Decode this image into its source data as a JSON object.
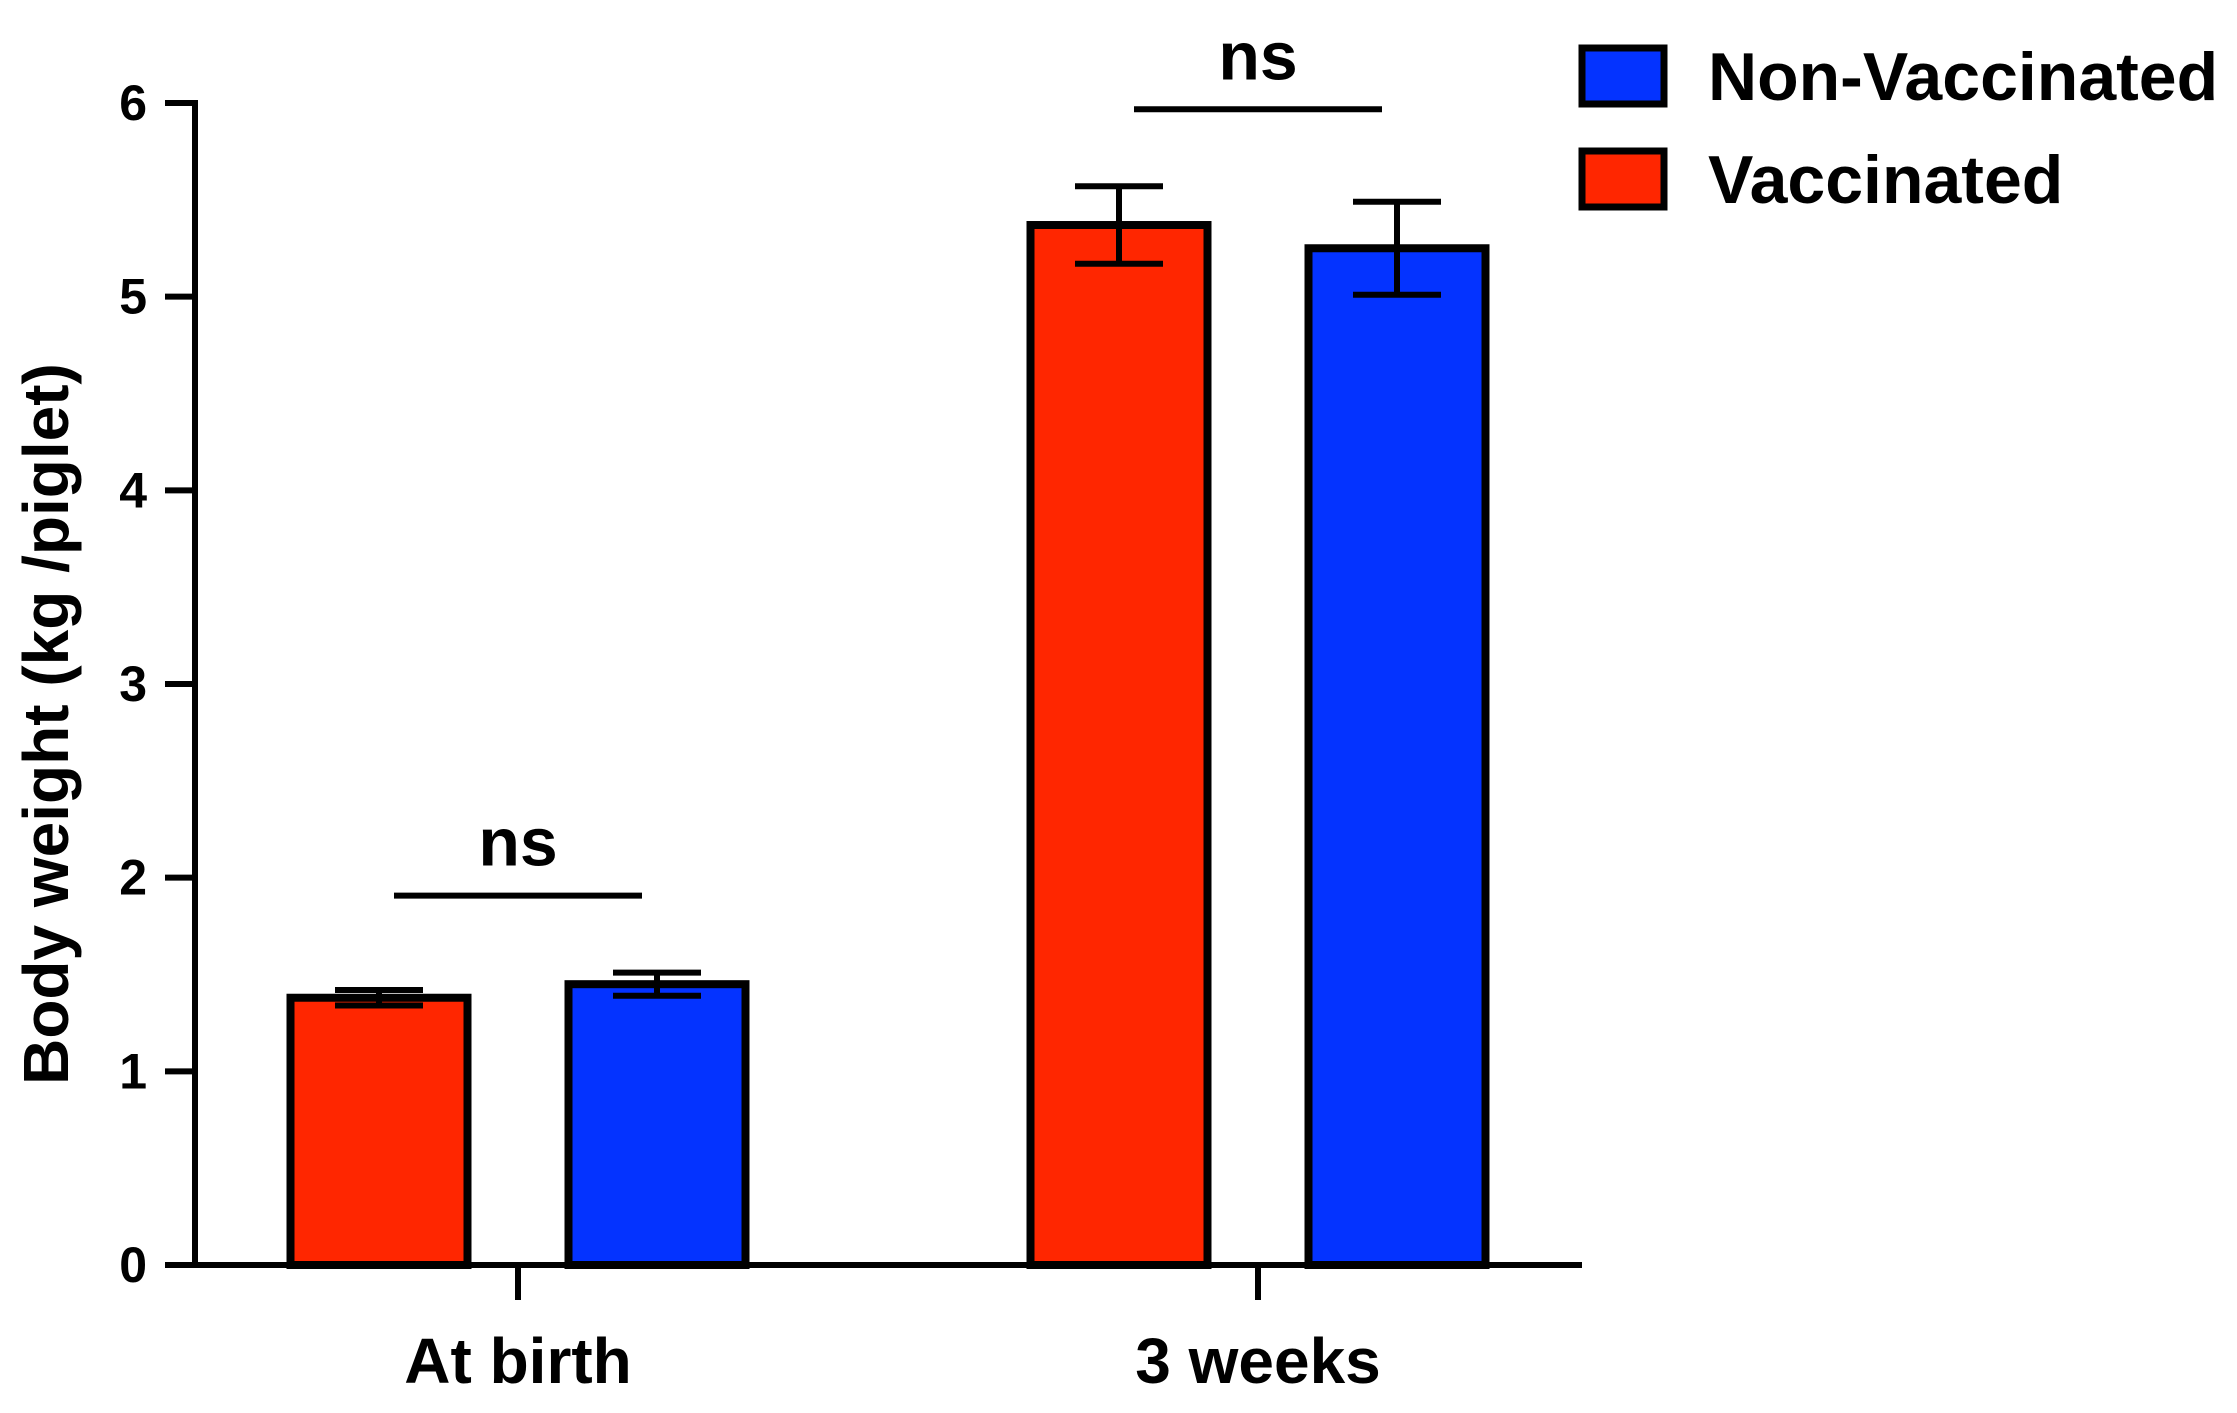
{
  "chart_data": {
    "type": "bar",
    "title": "",
    "xlabel": "",
    "ylabel": "Body weight (kg /piglet)",
    "ylim": [
      0,
      6
    ],
    "yticks": [
      0,
      1,
      2,
      3,
      4,
      5,
      6
    ],
    "categories": [
      "At birth",
      "3 weeks"
    ],
    "series": [
      {
        "name": "Vaccinated",
        "color": "#ff2600",
        "values": [
          1.38,
          5.37
        ],
        "errors": [
          0.04,
          0.2
        ]
      },
      {
        "name": "Non-Vaccinated",
        "color": "#0433ff",
        "values": [
          1.45,
          5.25
        ],
        "errors": [
          0.06,
          0.24
        ]
      }
    ],
    "legend": {
      "placement": "top-right",
      "entries": [
        {
          "label": "Non-Vaccinated",
          "color": "#0433ff"
        },
        {
          "label": "Vaccinated",
          "color": "#ff2600"
        }
      ]
    },
    "significance": [
      {
        "category": "At birth",
        "label": "ns"
      },
      {
        "category": "3 weeks",
        "label": "ns"
      }
    ],
    "grid": false
  }
}
